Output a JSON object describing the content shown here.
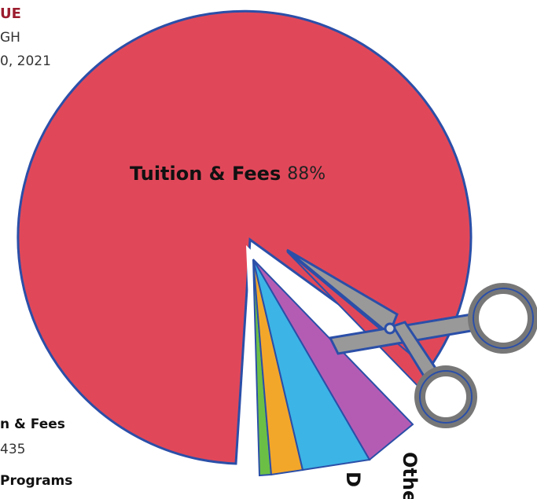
{
  "header": {
    "title": "UE",
    "line1": "GH",
    "line2": "0, 2021"
  },
  "pie_label": {
    "name": "Tuition & Fees",
    "share": "88%"
  },
  "legend": [
    {
      "name": "n & Fees",
      "value": "435"
    },
    {
      "name": "Programs"
    }
  ],
  "slice_labels": [
    "Othe",
    "D"
  ]
}
